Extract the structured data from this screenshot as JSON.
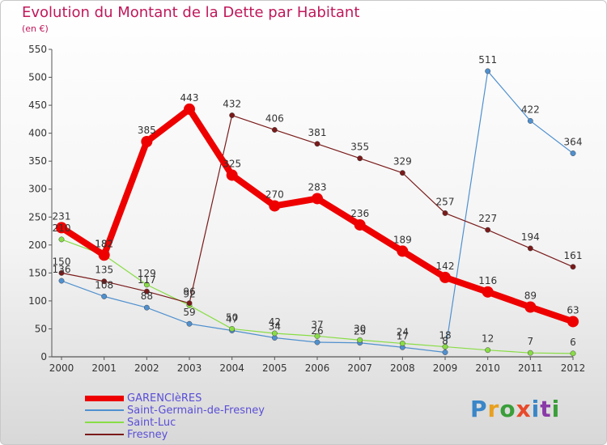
{
  "header": {
    "title": "Evolution du Montant de la Dette par Habitant",
    "subtitle": "(en €)"
  },
  "brand": {
    "text": "Proxiti",
    "colors": [
      "#3a86c8",
      "#e8a020",
      "#3a9e3a",
      "#e84a2a",
      "#3a86c8",
      "#8a3aa8",
      "#3a9e3a"
    ]
  },
  "chart_data": {
    "type": "line",
    "x": [
      "2000",
      "2001",
      "2002",
      "2003",
      "2004",
      "2005",
      "2006",
      "2007",
      "2008",
      "2009",
      "2010",
      "2011",
      "2012"
    ],
    "ylim": [
      0,
      550
    ],
    "yticks": [
      "0",
      "50",
      "100",
      "150",
      "200",
      "250",
      "300",
      "350",
      "400",
      "450",
      "500",
      "550"
    ],
    "grid": false,
    "legend_position": "bottom-left",
    "series": [
      {
        "name": "GARENCIèRES",
        "color": "#ee0000",
        "values": [
          231,
          182,
          385,
          443,
          325,
          270,
          283,
          236,
          189,
          142,
          116,
          89,
          63
        ],
        "labels": [
          "231",
          "182",
          "385",
          "443",
          "325",
          "270",
          "283",
          "236",
          "189",
          "142",
          "116",
          "89",
          "63"
        ]
      },
      {
        "name": "Saint-Germain-de-Fresney",
        "color": "#4f90cf",
        "values": [
          136,
          108,
          88,
          59,
          47,
          34,
          26,
          25,
          17,
          8,
          511,
          422,
          364
        ],
        "labels": [
          "136",
          "108",
          "88",
          "59",
          "47",
          "34",
          "26",
          "25",
          "17",
          "8",
          "511",
          "422",
          "364"
        ]
      },
      {
        "name": "Saint-Luc",
        "color": "#88dd44",
        "values": [
          210,
          182,
          129,
          92,
          50,
          42,
          37,
          30,
          24,
          18,
          12,
          7,
          6
        ],
        "labels": [
          "210",
          "182",
          "129",
          "92",
          "50",
          "42",
          "37",
          "30",
          "24",
          "18",
          "12",
          "7",
          "6"
        ]
      },
      {
        "name": "Fresney",
        "color": "#7a1a1a",
        "values": [
          150,
          135,
          117,
          96,
          432,
          406,
          381,
          355,
          329,
          257,
          227,
          194,
          161
        ],
        "labels": [
          "150",
          "135",
          "117",
          "96",
          "432",
          "406",
          "381",
          "355",
          "329",
          "257",
          "227",
          "194",
          "161"
        ]
      }
    ]
  }
}
